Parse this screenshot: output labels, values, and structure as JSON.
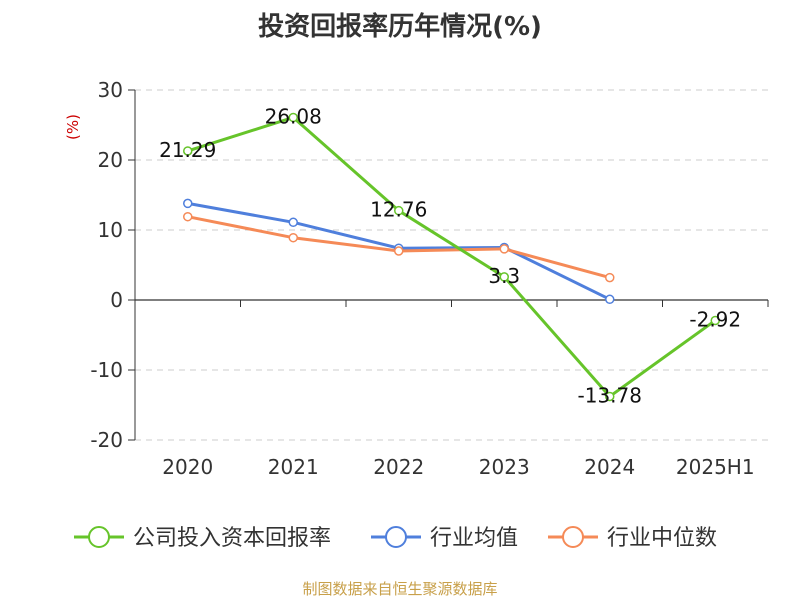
{
  "colors": {
    "series": [
      "#66c42a",
      "#4f7fdc",
      "#f58a57"
    ],
    "axis": "#333333",
    "grid": "#cccccc",
    "unit": "#cc0000",
    "source": "#c8a04a"
  },
  "chart_data": {
    "type": "line",
    "title": "投资回报率历年情况(%)",
    "ylabel": "(%)",
    "categories": [
      "2020",
      "2021",
      "2022",
      "2023",
      "2024",
      "2025H1"
    ],
    "ylim": [
      -20,
      30
    ],
    "yticks": [
      30,
      20,
      10,
      0,
      -10,
      -20
    ],
    "grid": true,
    "legend_position": "bottom",
    "series": [
      {
        "name": "公司投入资本回报率",
        "values": [
          21.29,
          26.08,
          12.76,
          3.3,
          -13.78,
          -2.92
        ],
        "labels": [
          "21.29",
          "26.08",
          "12.76",
          "3.3",
          "-13.78",
          "-2.92"
        ]
      },
      {
        "name": "行业均值",
        "values": [
          13.8,
          11.1,
          7.4,
          7.5,
          0.1,
          null
        ]
      },
      {
        "name": "行业中位数",
        "values": [
          11.9,
          8.9,
          7.0,
          7.3,
          3.2,
          null
        ]
      }
    ],
    "source": "制图数据来自恒生聚源数据库"
  }
}
